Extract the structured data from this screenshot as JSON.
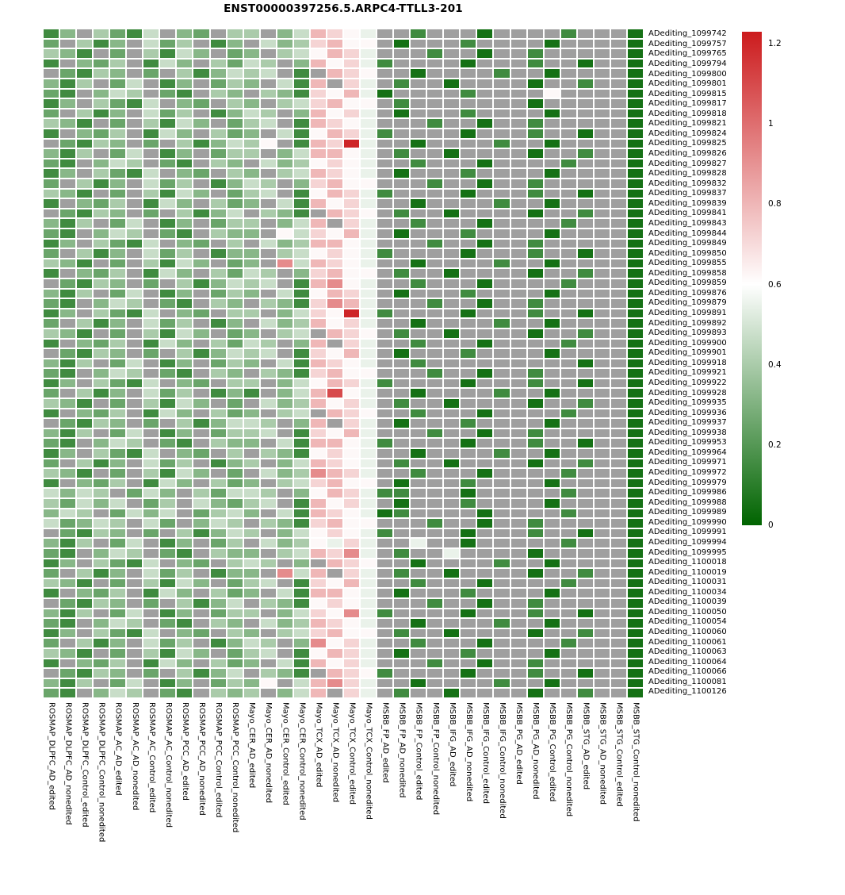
{
  "title": "ENST00000397256.5.ARPC4-TTLL3-201",
  "chart_data": {
    "type": "heatmap",
    "title": "ENST00000397256.5.ARPC4-TTLL3-201",
    "na_color": "#9f9f9f",
    "colormap": {
      "min_color": "#006400",
      "mid_color": "#ffffff",
      "max_color": "#cc1b1d",
      "min": 0,
      "mid": 0.6,
      "max": 1.23
    },
    "legend": {
      "ticks": [
        1.2,
        1,
        0.8,
        0.6,
        0.4,
        0.2,
        0
      ],
      "position": "right"
    },
    "value_map": {
      "a": 0.05,
      "b": 0.15,
      "c": 0.25,
      "d": 0.32,
      "e": 0.4,
      "f": 0.47,
      "g": 0.55,
      "h": 0.62,
      "i": 0.72,
      "j": 0.8,
      "k": 0.92,
      "m": 1.1,
      "n": 1.2,
      ".": null
    },
    "columns": [
      "ROSMAP_DLPFC_AD_edited",
      "ROSMAP_DLPFC_AD_nonedited",
      "ROSMAP_DLPFC_Control_edited",
      "ROSMAP_DLPFC_Control_nonedited",
      "ROSMAP_AC_AD_edited",
      "ROSMAP_AC_AD_nonedited",
      "ROSMAP_AC_Control_edited",
      "ROSMAP_AC_Control_nonedited",
      "ROSMAP_PCC_AD_edited",
      "ROSMAP_PCC_AD_nonedited",
      "ROSMAP_PCC_Control_edited",
      "ROSMAP_PCC_Control_nonedited",
      "Mayo_CER_AD_edited",
      "Mayo_CER_AD_nonedited",
      "Mayo_CER_Control_edited",
      "Mayo_CER_Control_nonedited",
      "Mayo_TCX_AD_edited",
      "Mayo_TCX_AD_nonedited",
      "Mayo_TCX_Control_edited",
      "Mayo_TCX_Control_nonedited",
      "MSBB_FP_AD_edited",
      "MSBB_FP_AD_nonedited",
      "MSBB_FP_Control_edited",
      "MSBB_FP_Control_nonedited",
      "MSBB_IFG_AD_edited",
      "MSBB_IFG_AD_nonedited",
      "MSBB_IFG_Control_edited",
      "MSBB_IFG_Control_nonedited",
      "MSBB_PG_AD_edited",
      "MSBB_PG_AD_nonedited",
      "MSBB_PG_Control_edited",
      "MSBB_PG_Control_nonedited",
      "MSBB_STG_AD_edited",
      "MSBB_STG_AD_nonedited",
      "MSBB_STG_Control_edited",
      "MSBB_STG_Control_nonedited"
    ],
    "rows": [
      "ADediting_1099742",
      "ADediting_1099757",
      "ADediting_1099765",
      "ADediting_1099794",
      "ADediting_1099800",
      "ADediting_1099801",
      "ADediting_1099815",
      "ADediting_1099817",
      "ADediting_1099818",
      "ADediting_1099821",
      "ADediting_1099824",
      "ADediting_1099825",
      "ADediting_1099826",
      "ADediting_1099827",
      "ADediting_1099828",
      "ADediting_1099832",
      "ADediting_1099837",
      "ADediting_1099839",
      "ADediting_1099841",
      "ADediting_1099843",
      "ADediting_1099844",
      "ADediting_1099849",
      "ADediting_1099850",
      "ADediting_1099855",
      "ADediting_1099858",
      "ADediting_1099859",
      "ADediting_1099876",
      "ADediting_1099879",
      "ADediting_1099891",
      "ADediting_1099892",
      "ADediting_1099893",
      "ADediting_1099900",
      "ADediting_1099901",
      "ADediting_1099918",
      "ADediting_1099921",
      "ADediting_1099922",
      "ADediting_1099928",
      "ADediting_1099935",
      "ADediting_1099936",
      "ADediting_1099937",
      "ADediting_1099938",
      "ADediting_1099953",
      "ADediting_1099964",
      "ADediting_1099971",
      "ADediting_1099972",
      "ADediting_1099979",
      "ADediting_1099986",
      "ADediting_1099988",
      "ADediting_1099989",
      "ADediting_1099990",
      "ADediting_1099991",
      "ADediting_1099994",
      "ADediting_1099995",
      "ADediting_1100018",
      "ADediting_1100019",
      "ADediting_1100031",
      "ADediting_1100034",
      "ADediting_1100039",
      "ADediting_1100050",
      "ADediting_1100054",
      "ADediting_1100060",
      "ADediting_1100061",
      "ADediting_1100063",
      "ADediting_1100064",
      "ADediting_1100066",
      "ADediting_1100081",
      "ADediting_1100126"
    ],
    "cells": [
      "bd.ecbf.dc.ee.dfjihg..b...a....b...a",
      "c.ebd.fce.bd.fdeijhh.a...b....a....a",
      "edb.c.ebfd.cd.efhjig...b..a..b.....a",
      "b.dce.bfd.ecfe.djhigb....a...b..a..a",
      ".cbed.c.ebdfef.b.jih..a....b..a....a",
      "dbe.cf.bd.ced.fbj.ig.b..a....a..b..a",
      "cb.dfe.cb.ed.edbihjga....b....h....a",
      "bd.ecbf.dc.ed.efijhh.b.......a.....a",
      "c.ebd.fce.bdfe.djhig.a...b....a....a",
      "edb.c.ebfd.cef.bjihg...b..a..b.....a",
      "b.dce.bfd.ecd.fbhjigb....a...b..a..a",
      ".cbed.c.ebdfeh.bjing..a....b..a....a",
      "dbe.cf.bd.cee.dfjjhg.b..a....a..b..a",
      "cb.dfe.cb.ed.fdehihg..b...a....b...a",
      "bd.ecbf.dc.ed.efjihg.a...b....a....a",
      "c.ebd.fce.bdfe.dijhh...b..a..b.....a",
      "edb.c.ebfd.cef.bhjigb....a...b..a..a",
      "b.dce.bfd.ecd.fbjhig..a....b..a....a",
      ".cbed.c.ebdf.edb.jih.b..a....a..b..a",
      "dbe.cf.bd.cee.dfj.ig..b...a....b...a",
      "cb.dfe.cb.edd.hfihjg.a...b....a....a",
      "bd.ecbf.dc.e.fdejjhg...b..a..b.....a",
      "c.ebd.fce.bdd.efhihgb....a...b..a..a",
      "edb.c.ebfd.cd.kfjihg..a....b..a....a",
      "b.dce.bfd.ecfe.dijhh.b..a....a..b..a",
      ".cbed.c.ebdfef.bjkhg..b...a....b...a",
      "dbe.cf.bd.ced.fbhjig.a...b....a....a",
      "cb.dfe.cb.ed.edbikjg...b..a..b.....a",
      "bd.ecbf.dc.ee.dfihngb....a...b..a..a",
      "c.ebd.fce.bd.fdejhig..a....b..a....a",
      "edb.c.ebfd.cd.ef.jih.b..a....a..b..a",
      "b.dce.bfd.ecfe.dj.ig..b...a....b...a",
      ".cbed.c.ebdfef.bihjg.a...b....a....a",
      "dbe.cf.bd.ced.fbjihg..b.........a..a",
      "cb.dfe.cb.ed.edbijhh...b..a..b.....a",
      "bd.ecbf.dc.ee.dfhjigb....a...b..a..a",
      "c.ebd.fce.bdb.dfjmhg..a....b..a....a",
      "edb.c.ebfd.c.fdejhig.b..a....a..b..a",
      "b.dce.bfd.ecd.ef.jih..b...a....b...a",
      ".cbed.c.ebdffe.dj.ig.a...b....a....a",
      "dbe.cf.bd.ceef.bihjg...b..a..b.....a",
      "cb.dfe.cb.edd.fbjjhgb....a...b..a..a",
      "bd.ecbf.dc.e.edbhihg..a....b..a....a",
      "c.ebd.fce.bde.dfjihg.b..a....a..b..a",
      "edb.c.ebfd.c.fdekjig..b...a....b...a",
      "b.dce.bfd.ecd.efijhh.a...b....a....a",
      "fdfe.cfd.ecffe.dhjigbb...a.....b...a",
      "ecfdf.ce.fdcef.bjhig.a...b....a....a",
      "dfe.cfdf.cefd.fbjihgab....a....b...a",
      "fcdfe.fc.dfe.edbijhh...b..a..b.....a",
      ".cbed.c.ebdfe.dfhihgb....a...b..a..a",
      "dbe.cf.bd.ce.fdehgig..g..a.....b...a",
      "cb.dfe.cb.edd.efjikg.b..g....a.....a",
      "bd.ecbf.dc.efe.d.jih..a....b..a....a",
      "c.ebd.fce.bdd.kfj.ig.b..a....a..b..a",
      "edb.c.ebfd.cef.bihjg..b...a....b...a",
      "b.dce.bfd.ecd.fbjjhg.a...b....a....a",
      ".cbed.c.ebdf.edbhihg...b..a..b.....a",
      "dbe.cf.bd.cee.dfihkgb....a...b..a..a",
      "cb.dfe.cb.ed.fdejihg..a....b..a....a",
      "bd.ecbf.dc.ed.efijhh.b..a....a..b..a",
      "c.ebd.fce.bdfe.dkhig..b...a....b...a",
      "edb.c.ebfd.cef.bhjig.a...b....a....a",
      "b.dce.bfd.ecd.fbjhig...b..a..b.....a",
      ".cbed.c.ebdf.edb.jihb....a...b..a..a",
      "dbe.cf.bd.cedh.fjkig..a....b..a....a",
      "cb.dfe.cb.ede.dfj.ig.b..a....a..b..a"
    ]
  }
}
